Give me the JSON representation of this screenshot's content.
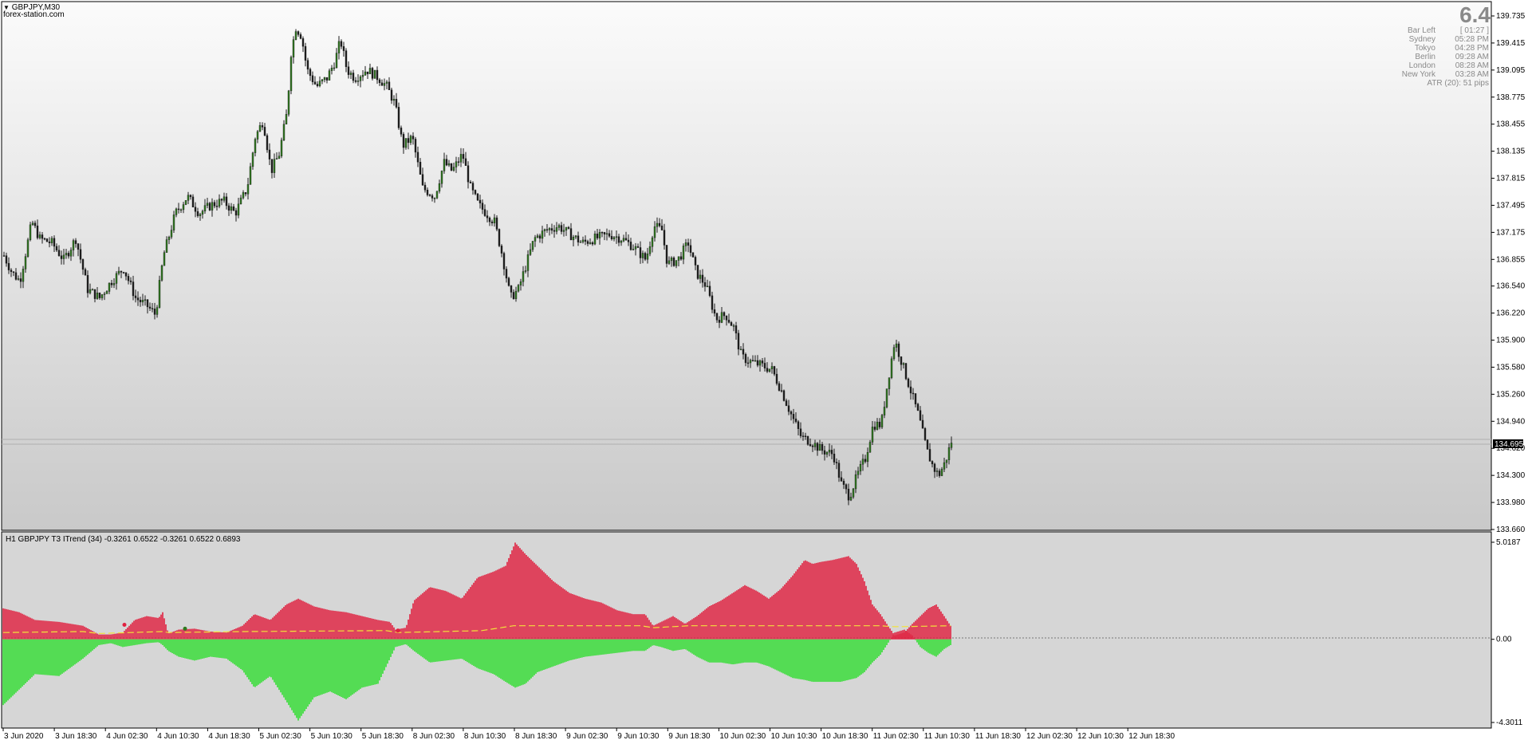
{
  "window": {
    "symbol_title": "GBPJPY,M30",
    "watermark": "forex-station.com",
    "menu_icon": "triangle-down-icon"
  },
  "info_panel": {
    "big_value": "6.4",
    "rows": [
      {
        "label": "Bar Left",
        "value": "[ 01:27 ]"
      },
      {
        "label": "Sydney",
        "value": "05:28 PM"
      },
      {
        "label": "Tokyo",
        "value": "04:28 PM"
      },
      {
        "label": "Berlin",
        "value": "09:28 AM"
      },
      {
        "label": "London",
        "value": "08:28 AM"
      },
      {
        "label": "New York",
        "value": "03:28 AM"
      }
    ],
    "atr": "ATR (20): 51 pips"
  },
  "price_axis": {
    "ticks": [
      "139.735",
      "139.415",
      "139.095",
      "138.775",
      "138.455",
      "138.135",
      "137.815",
      "137.495",
      "137.175",
      "136.855",
      "136.540",
      "136.220",
      "135.900",
      "135.580",
      "135.260",
      "134.940",
      "134.620",
      "134.300",
      "133.980",
      "133.660"
    ],
    "current_price": "134.695"
  },
  "indicator": {
    "title": "H1 GBPJPY T3 ITrend (34) -0.3261 0.6522 -0.3261 0.6522 0.6893",
    "ticks": [
      "5.0187",
      "0.00",
      "-4.3011"
    ]
  },
  "time_axis": {
    "labels": [
      "3 Jun 2020",
      "3 Jun 18:30",
      "4 Jun 02:30",
      "4 Jun 10:30",
      "4 Jun 18:30",
      "5 Jun 02:30",
      "5 Jun 10:30",
      "5 Jun 18:30",
      "8 Jun 02:30",
      "8 Jun 10:30",
      "8 Jun 18:30",
      "9 Jun 02:30",
      "9 Jun 10:30",
      "9 Jun 18:30",
      "10 Jun 02:30",
      "10 Jun 10:30",
      "10 Jun 18:30",
      "11 Jun 02:30",
      "11 Jun 10:30",
      "11 Jun 18:30",
      "12 Jun 02:30",
      "12 Jun 10:30",
      "12 Jun 18:30"
    ]
  },
  "colors": {
    "bull_candle": "#2f7a1f",
    "bear_candle": "#1c1c1c",
    "hist_up": "#e0203f",
    "hist_down": "#33dd33",
    "signal_line": "#f2e23a",
    "price_marker": "#000000"
  },
  "chart_data": [
    {
      "type": "candlestick",
      "title": "GBPJPY,M30",
      "ylim": [
        133.66,
        139.735
      ],
      "path_knots": [
        [
          0,
          136.9
        ],
        [
          10,
          136.7
        ],
        [
          20,
          136.6
        ],
        [
          35,
          137.3
        ],
        [
          45,
          137.1
        ],
        [
          60,
          137.05
        ],
        [
          75,
          136.85
        ],
        [
          90,
          137.1
        ],
        [
          105,
          136.5
        ],
        [
          120,
          136.4
        ],
        [
          135,
          136.6
        ],
        [
          150,
          136.75
        ],
        [
          165,
          136.4
        ],
        [
          180,
          136.3
        ],
        [
          190,
          136.2
        ],
        [
          200,
          136.9
        ],
        [
          215,
          137.4
        ],
        [
          230,
          137.6
        ],
        [
          245,
          137.4
        ],
        [
          260,
          137.5
        ],
        [
          275,
          137.55
        ],
        [
          290,
          137.4
        ],
        [
          305,
          137.7
        ],
        [
          315,
          138.3
        ],
        [
          325,
          138.5
        ],
        [
          335,
          137.9
        ],
        [
          345,
          138.1
        ],
        [
          355,
          138.6
        ],
        [
          360,
          139.3
        ],
        [
          366,
          139.6
        ],
        [
          373,
          139.5
        ],
        [
          380,
          139.1
        ],
        [
          392,
          138.9
        ],
        [
          405,
          139.0
        ],
        [
          415,
          139.2
        ],
        [
          422,
          139.45
        ],
        [
          430,
          139.1
        ],
        [
          440,
          139.0
        ],
        [
          455,
          139.1
        ],
        [
          470,
          139.0
        ],
        [
          480,
          138.9
        ],
        [
          490,
          138.7
        ],
        [
          500,
          138.2
        ],
        [
          512,
          138.3
        ],
        [
          525,
          137.7
        ],
        [
          540,
          137.6
        ],
        [
          552,
          138.0
        ],
        [
          562,
          137.9
        ],
        [
          575,
          138.1
        ],
        [
          585,
          137.7
        ],
        [
          595,
          137.5
        ],
        [
          605,
          137.4
        ],
        [
          615,
          137.3
        ],
        [
          625,
          136.9
        ],
        [
          635,
          136.4
        ],
        [
          645,
          136.5
        ],
        [
          655,
          136.8
        ],
        [
          665,
          137.1
        ],
        [
          680,
          137.2
        ],
        [
          695,
          137.25
        ],
        [
          710,
          137.15
        ],
        [
          725,
          137.05
        ],
        [
          740,
          137.1
        ],
        [
          760,
          137.15
        ],
        [
          775,
          137.1
        ],
        [
          790,
          137.0
        ],
        [
          805,
          136.85
        ],
        [
          815,
          137.25
        ],
        [
          825,
          137.2
        ],
        [
          832,
          136.8
        ],
        [
          845,
          136.85
        ],
        [
          858,
          137.05
        ],
        [
          868,
          136.7
        ],
        [
          880,
          136.55
        ],
        [
          893,
          136.15
        ],
        [
          905,
          136.2
        ],
        [
          915,
          136.05
        ],
        [
          925,
          135.7
        ],
        [
          935,
          135.65
        ],
        [
          950,
          135.6
        ],
        [
          963,
          135.55
        ],
        [
          975,
          135.3
        ],
        [
          988,
          135.0
        ],
        [
          1000,
          134.75
        ],
        [
          1012,
          134.7
        ],
        [
          1025,
          134.6
        ],
        [
          1040,
          134.55
        ],
        [
          1050,
          134.2
        ],
        [
          1060,
          134.05
        ],
        [
          1070,
          134.3
        ],
        [
          1080,
          134.5
        ],
        [
          1090,
          134.9
        ],
        [
          1100,
          134.9
        ],
        [
          1108,
          135.4
        ],
        [
          1117,
          135.9
        ],
        [
          1127,
          135.6
        ],
        [
          1137,
          135.3
        ],
        [
          1147,
          135.0
        ],
        [
          1157,
          134.6
        ],
        [
          1165,
          134.4
        ],
        [
          1172,
          134.3
        ],
        [
          1180,
          134.45
        ],
        [
          1188,
          134.7
        ]
      ],
      "x_extent": [
        0,
        1188
      ],
      "candle_step": 3
    },
    {
      "type": "area",
      "title": "H1 GBPJPY T3 ITrend (34)",
      "ylim": [
        -4.3011,
        5.0187
      ],
      "upper_knots": [
        [
          0,
          1.6
        ],
        [
          20,
          1.4
        ],
        [
          40,
          1.0
        ],
        [
          70,
          0.9
        ],
        [
          100,
          0.7
        ],
        [
          120,
          0.25
        ],
        [
          135,
          0.25
        ],
        [
          150,
          0.35
        ],
        [
          165,
          1.0
        ],
        [
          180,
          1.2
        ],
        [
          195,
          1.1
        ],
        [
          200,
          1.4
        ],
        [
          207,
          0.3
        ],
        [
          220,
          0.5
        ],
        [
          240,
          0.55
        ],
        [
          260,
          0.4
        ],
        [
          280,
          0.35
        ],
        [
          300,
          0.7
        ],
        [
          315,
          1.3
        ],
        [
          335,
          1.0
        ],
        [
          355,
          1.8
        ],
        [
          370,
          2.1
        ],
        [
          390,
          1.7
        ],
        [
          410,
          1.5
        ],
        [
          430,
          1.4
        ],
        [
          450,
          1.2
        ],
        [
          470,
          1.0
        ],
        [
          485,
          0.9
        ],
        [
          492,
          0.5
        ],
        [
          505,
          0.6
        ],
        [
          515,
          2.0
        ],
        [
          535,
          2.7
        ],
        [
          555,
          2.5
        ],
        [
          575,
          2.1
        ],
        [
          595,
          3.2
        ],
        [
          615,
          3.5
        ],
        [
          630,
          3.8
        ],
        [
          642,
          5.0
        ],
        [
          655,
          4.4
        ],
        [
          670,
          3.8
        ],
        [
          690,
          3.0
        ],
        [
          710,
          2.4
        ],
        [
          730,
          2.1
        ],
        [
          750,
          1.9
        ],
        [
          770,
          1.5
        ],
        [
          790,
          1.3
        ],
        [
          805,
          1.3
        ],
        [
          815,
          0.7
        ],
        [
          825,
          0.9
        ],
        [
          840,
          1.2
        ],
        [
          855,
          0.8
        ],
        [
          870,
          1.2
        ],
        [
          885,
          1.7
        ],
        [
          900,
          2.0
        ],
        [
          915,
          2.4
        ],
        [
          930,
          2.8
        ],
        [
          945,
          2.5
        ],
        [
          960,
          2.1
        ],
        [
          975,
          2.6
        ],
        [
          990,
          3.3
        ],
        [
          1005,
          4.1
        ],
        [
          1015,
          3.9
        ],
        [
          1025,
          4.0
        ],
        [
          1040,
          4.1
        ],
        [
          1050,
          4.2
        ],
        [
          1060,
          4.3
        ],
        [
          1070,
          3.9
        ],
        [
          1080,
          3.0
        ],
        [
          1090,
          1.8
        ],
        [
          1100,
          1.3
        ],
        [
          1108,
          0.8
        ],
        [
          1118,
          0.2
        ],
        [
          1130,
          0.35
        ],
        [
          1140,
          0.8
        ],
        [
          1150,
          1.2
        ],
        [
          1160,
          1.6
        ],
        [
          1170,
          1.8
        ],
        [
          1180,
          1.2
        ],
        [
          1188,
          0.7
        ]
      ],
      "lower_knots": [
        [
          0,
          -3.4
        ],
        [
          20,
          -2.6
        ],
        [
          40,
          -1.8
        ],
        [
          70,
          -1.9
        ],
        [
          100,
          -1.0
        ],
        [
          120,
          -0.3
        ],
        [
          135,
          -0.2
        ],
        [
          150,
          -0.4
        ],
        [
          165,
          -0.3
        ],
        [
          180,
          -0.2
        ],
        [
          195,
          -0.15
        ],
        [
          200,
          -0.3
        ],
        [
          207,
          -0.6
        ],
        [
          220,
          -0.9
        ],
        [
          240,
          -1.1
        ],
        [
          260,
          -0.9
        ],
        [
          280,
          -1.0
        ],
        [
          300,
          -1.6
        ],
        [
          315,
          -2.5
        ],
        [
          335,
          -1.9
        ],
        [
          355,
          -3.2
        ],
        [
          370,
          -4.2
        ],
        [
          390,
          -3.0
        ],
        [
          410,
          -2.7
        ],
        [
          430,
          -3.1
        ],
        [
          450,
          -2.5
        ],
        [
          470,
          -2.3
        ],
        [
          485,
          -1.0
        ],
        [
          492,
          -0.4
        ],
        [
          505,
          -0.25
        ],
        [
          515,
          -0.6
        ],
        [
          535,
          -1.2
        ],
        [
          555,
          -1.1
        ],
        [
          575,
          -1.0
        ],
        [
          595,
          -1.5
        ],
        [
          615,
          -1.8
        ],
        [
          630,
          -2.2
        ],
        [
          642,
          -2.5
        ],
        [
          655,
          -2.3
        ],
        [
          670,
          -1.7
        ],
        [
          690,
          -1.4
        ],
        [
          710,
          -1.1
        ],
        [
          730,
          -0.9
        ],
        [
          750,
          -0.8
        ],
        [
          770,
          -0.7
        ],
        [
          790,
          -0.6
        ],
        [
          805,
          -0.6
        ],
        [
          815,
          -0.3
        ],
        [
          825,
          -0.4
        ],
        [
          840,
          -0.6
        ],
        [
          855,
          -0.5
        ],
        [
          870,
          -0.9
        ],
        [
          885,
          -1.2
        ],
        [
          900,
          -1.2
        ],
        [
          915,
          -1.3
        ],
        [
          930,
          -1.2
        ],
        [
          945,
          -1.2
        ],
        [
          960,
          -1.4
        ],
        [
          975,
          -1.7
        ],
        [
          990,
          -2.0
        ],
        [
          1005,
          -2.1
        ],
        [
          1015,
          -2.2
        ],
        [
          1025,
          -2.2
        ],
        [
          1040,
          -2.2
        ],
        [
          1050,
          -2.2
        ],
        [
          1060,
          -2.1
        ],
        [
          1070,
          -2.0
        ],
        [
          1080,
          -1.7
        ],
        [
          1090,
          -1.2
        ],
        [
          1100,
          -0.8
        ],
        [
          1108,
          -0.3
        ],
        [
          1118,
          0.35
        ],
        [
          1130,
          0.5
        ],
        [
          1140,
          0.2
        ],
        [
          1150,
          -0.4
        ],
        [
          1160,
          -0.7
        ],
        [
          1170,
          -0.9
        ],
        [
          1180,
          -0.5
        ],
        [
          1188,
          -0.3
        ]
      ],
      "signal_knots": [
        [
          0,
          0.35
        ],
        [
          100,
          0.4
        ],
        [
          120,
          0.3
        ],
        [
          200,
          0.4
        ],
        [
          207,
          0.35
        ],
        [
          300,
          0.4
        ],
        [
          480,
          0.45
        ],
        [
          495,
          0.35
        ],
        [
          600,
          0.45
        ],
        [
          640,
          0.7
        ],
        [
          800,
          0.7
        ],
        [
          815,
          0.6
        ],
        [
          860,
          0.7
        ],
        [
          1100,
          0.7
        ],
        [
          1118,
          0.65
        ],
        [
          1188,
          0.7
        ]
      ],
      "markers": [
        {
          "x": 152,
          "y": 0.75,
          "color": "#e0203f"
        },
        {
          "x": 228,
          "y": 0.55,
          "color": "#2f7a1f"
        },
        {
          "x": 495,
          "y": 0.45,
          "color": "#e0203f"
        }
      ]
    }
  ]
}
